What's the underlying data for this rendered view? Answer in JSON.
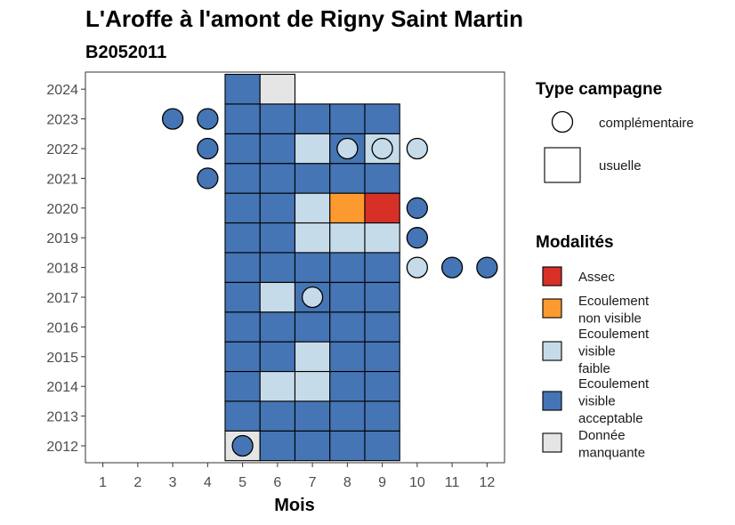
{
  "chart_data": {
    "type": "heatmap",
    "title": "L'Aroffe à l'amont de Rigny Saint Martin",
    "subtitle": "B2052011",
    "xlabel": "Mois",
    "ylabel": "",
    "x_ticks": [
      "1",
      "2",
      "3",
      "4",
      "5",
      "6",
      "7",
      "8",
      "9",
      "10",
      "11",
      "12"
    ],
    "y_ticks": [
      "2012",
      "2013",
      "2014",
      "2015",
      "2016",
      "2017",
      "2018",
      "2019",
      "2020",
      "2021",
      "2022",
      "2023",
      "2024"
    ],
    "grid": false,
    "legend_position": "right",
    "modalites": [
      {
        "key": "assec",
        "label": "Assec",
        "color": "#d73027"
      },
      {
        "key": "nonvisible",
        "label": "Ecoulement non visible",
        "color": "#fd9a2f"
      },
      {
        "key": "faible",
        "label": "Ecoulement visible faible",
        "color": "#c6dbe9"
      },
      {
        "key": "acceptable",
        "label": "Ecoulement visible acceptable",
        "color": "#4575b4"
      },
      {
        "key": "manquante",
        "label": "Donnée manquante",
        "color": "#e5e5e5"
      }
    ],
    "type_campagne": [
      {
        "key": "complementaire",
        "label": "complémentaire"
      },
      {
        "key": "usuelle",
        "label": "usuelle"
      }
    ],
    "usuelle": [
      {
        "year": 2012,
        "month": 5,
        "modalite": "manquante"
      },
      {
        "year": 2012,
        "month": 6,
        "modalite": "acceptable"
      },
      {
        "year": 2012,
        "month": 7,
        "modalite": "acceptable"
      },
      {
        "year": 2012,
        "month": 8,
        "modalite": "acceptable"
      },
      {
        "year": 2012,
        "month": 9,
        "modalite": "acceptable"
      },
      {
        "year": 2013,
        "month": 5,
        "modalite": "acceptable"
      },
      {
        "year": 2013,
        "month": 6,
        "modalite": "acceptable"
      },
      {
        "year": 2013,
        "month": 7,
        "modalite": "acceptable"
      },
      {
        "year": 2013,
        "month": 8,
        "modalite": "acceptable"
      },
      {
        "year": 2013,
        "month": 9,
        "modalite": "acceptable"
      },
      {
        "year": 2014,
        "month": 5,
        "modalite": "acceptable"
      },
      {
        "year": 2014,
        "month": 6,
        "modalite": "faible"
      },
      {
        "year": 2014,
        "month": 7,
        "modalite": "faible"
      },
      {
        "year": 2014,
        "month": 8,
        "modalite": "acceptable"
      },
      {
        "year": 2014,
        "month": 9,
        "modalite": "acceptable"
      },
      {
        "year": 2015,
        "month": 5,
        "modalite": "acceptable"
      },
      {
        "year": 2015,
        "month": 6,
        "modalite": "acceptable"
      },
      {
        "year": 2015,
        "month": 7,
        "modalite": "faible"
      },
      {
        "year": 2015,
        "month": 8,
        "modalite": "acceptable"
      },
      {
        "year": 2015,
        "month": 9,
        "modalite": "acceptable"
      },
      {
        "year": 2016,
        "month": 5,
        "modalite": "acceptable"
      },
      {
        "year": 2016,
        "month": 6,
        "modalite": "acceptable"
      },
      {
        "year": 2016,
        "month": 7,
        "modalite": "acceptable"
      },
      {
        "year": 2016,
        "month": 8,
        "modalite": "acceptable"
      },
      {
        "year": 2016,
        "month": 9,
        "modalite": "acceptable"
      },
      {
        "year": 2017,
        "month": 5,
        "modalite": "acceptable"
      },
      {
        "year": 2017,
        "month": 6,
        "modalite": "faible"
      },
      {
        "year": 2017,
        "month": 7,
        "modalite": "acceptable"
      },
      {
        "year": 2017,
        "month": 8,
        "modalite": "acceptable"
      },
      {
        "year": 2017,
        "month": 9,
        "modalite": "acceptable"
      },
      {
        "year": 2018,
        "month": 5,
        "modalite": "acceptable"
      },
      {
        "year": 2018,
        "month": 6,
        "modalite": "acceptable"
      },
      {
        "year": 2018,
        "month": 7,
        "modalite": "acceptable"
      },
      {
        "year": 2018,
        "month": 8,
        "modalite": "acceptable"
      },
      {
        "year": 2018,
        "month": 9,
        "modalite": "acceptable"
      },
      {
        "year": 2019,
        "month": 5,
        "modalite": "acceptable"
      },
      {
        "year": 2019,
        "month": 6,
        "modalite": "acceptable"
      },
      {
        "year": 2019,
        "month": 7,
        "modalite": "faible"
      },
      {
        "year": 2019,
        "month": 8,
        "modalite": "faible"
      },
      {
        "year": 2019,
        "month": 9,
        "modalite": "faible"
      },
      {
        "year": 2020,
        "month": 5,
        "modalite": "acceptable"
      },
      {
        "year": 2020,
        "month": 6,
        "modalite": "acceptable"
      },
      {
        "year": 2020,
        "month": 7,
        "modalite": "faible"
      },
      {
        "year": 2020,
        "month": 8,
        "modalite": "nonvisible"
      },
      {
        "year": 2020,
        "month": 9,
        "modalite": "assec"
      },
      {
        "year": 2021,
        "month": 5,
        "modalite": "acceptable"
      },
      {
        "year": 2021,
        "month": 6,
        "modalite": "acceptable"
      },
      {
        "year": 2021,
        "month": 7,
        "modalite": "acceptable"
      },
      {
        "year": 2021,
        "month": 8,
        "modalite": "acceptable"
      },
      {
        "year": 2021,
        "month": 9,
        "modalite": "acceptable"
      },
      {
        "year": 2022,
        "month": 5,
        "modalite": "acceptable"
      },
      {
        "year": 2022,
        "month": 6,
        "modalite": "acceptable"
      },
      {
        "year": 2022,
        "month": 7,
        "modalite": "faible"
      },
      {
        "year": 2022,
        "month": 8,
        "modalite": "acceptable"
      },
      {
        "year": 2022,
        "month": 9,
        "modalite": "faible"
      },
      {
        "year": 2023,
        "month": 5,
        "modalite": "acceptable"
      },
      {
        "year": 2023,
        "month": 6,
        "modalite": "acceptable"
      },
      {
        "year": 2023,
        "month": 7,
        "modalite": "acceptable"
      },
      {
        "year": 2023,
        "month": 8,
        "modalite": "acceptable"
      },
      {
        "year": 2023,
        "month": 9,
        "modalite": "acceptable"
      },
      {
        "year": 2024,
        "month": 5,
        "modalite": "acceptable"
      },
      {
        "year": 2024,
        "month": 6,
        "modalite": "manquante"
      }
    ],
    "complementaire": [
      {
        "year": 2012,
        "month": 5,
        "modalite": "acceptable"
      },
      {
        "year": 2017,
        "month": 7,
        "modalite": "faible"
      },
      {
        "year": 2018,
        "month": 10,
        "modalite": "faible"
      },
      {
        "year": 2018,
        "month": 11,
        "modalite": "acceptable"
      },
      {
        "year": 2018,
        "month": 12,
        "modalite": "acceptable"
      },
      {
        "year": 2019,
        "month": 10,
        "modalite": "acceptable"
      },
      {
        "year": 2020,
        "month": 10,
        "modalite": "acceptable"
      },
      {
        "year": 2021,
        "month": 4,
        "modalite": "acceptable"
      },
      {
        "year": 2022,
        "month": 4,
        "modalite": "acceptable"
      },
      {
        "year": 2022,
        "month": 8,
        "modalite": "faible"
      },
      {
        "year": 2022,
        "month": 9,
        "modalite": "faible"
      },
      {
        "year": 2022,
        "month": 10,
        "modalite": "faible"
      },
      {
        "year": 2023,
        "month": 3,
        "modalite": "acceptable"
      },
      {
        "year": 2023,
        "month": 4,
        "modalite": "acceptable"
      }
    ]
  }
}
